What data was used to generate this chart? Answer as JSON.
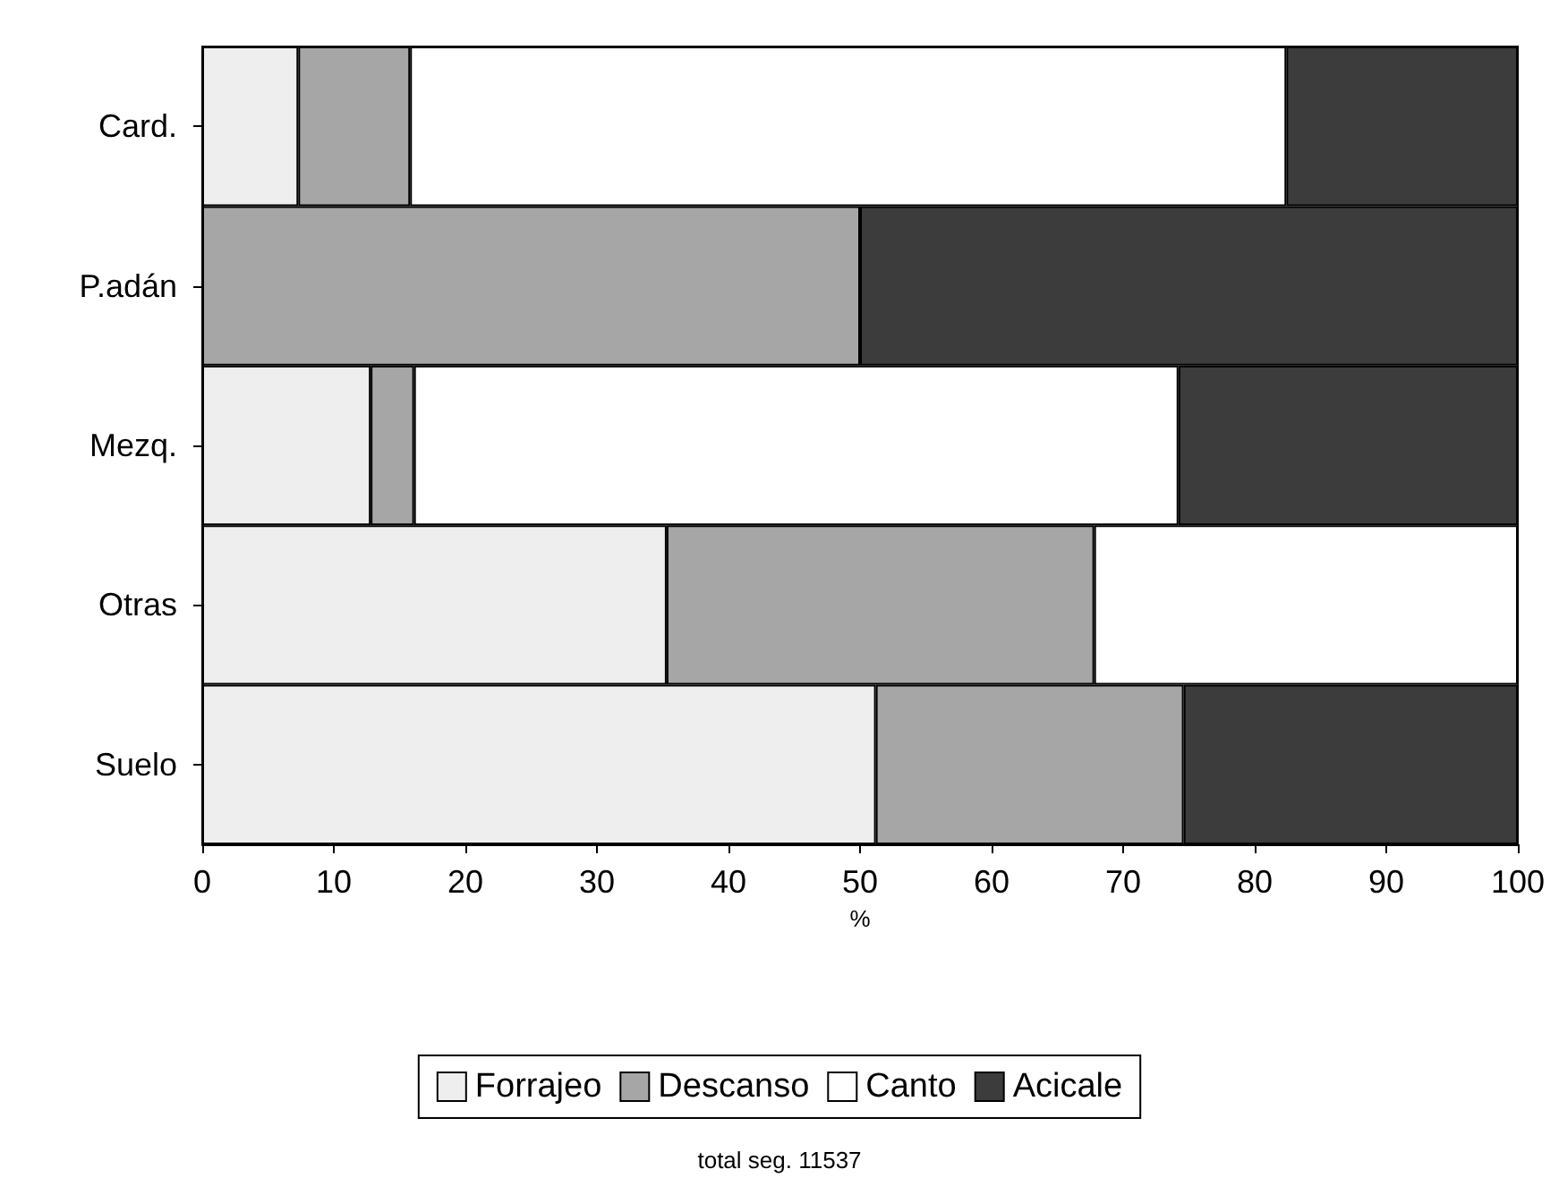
{
  "chart_data": {
    "type": "bar",
    "orientation": "horizontal",
    "stacked": true,
    "categories": [
      "Card.",
      "P.adán",
      "Mezq.",
      "Otras",
      "Suelo"
    ],
    "series": [
      {
        "name": "Forrajeo",
        "color": "#eeeeee",
        "values": [
          7.3,
          0,
          12.8,
          35.3,
          51.2
        ]
      },
      {
        "name": "Descanso",
        "color": "#a6a6a6",
        "values": [
          8.5,
          50,
          3.3,
          32.5,
          23.4
        ]
      },
      {
        "name": "Canto",
        "color": "#ffffff",
        "values": [
          66.6,
          0,
          58.1,
          32.2,
          0
        ]
      },
      {
        "name": "Acicale",
        "color": "#3c3c3c",
        "values": [
          17.6,
          50,
          25.8,
          0,
          25.4
        ]
      }
    ],
    "xlim": [
      0,
      100
    ],
    "xticks": [
      0,
      10,
      20,
      30,
      40,
      50,
      60,
      70,
      80,
      90,
      100
    ],
    "xlabel": "%",
    "legend": "bottom",
    "grid": false,
    "annotations": [
      "total seg. 11537"
    ]
  }
}
